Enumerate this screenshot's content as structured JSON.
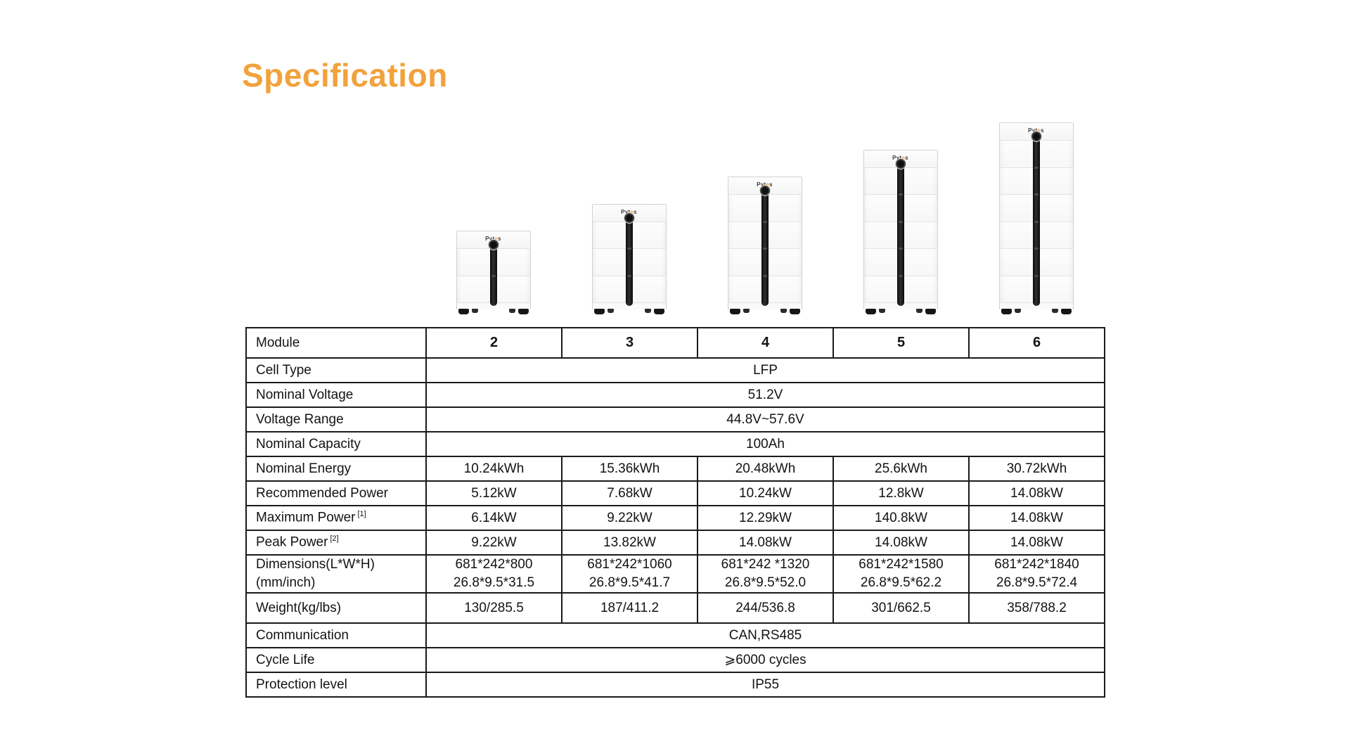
{
  "page": {
    "title": "Specification"
  },
  "colors": {
    "accent": "#F1A23C",
    "table_border": "#1A1A1A",
    "text": "#131313"
  },
  "brand": {
    "name": "Pytes",
    "prefix": "Pyt",
    "accent_letter": "e",
    "suffix": "s"
  },
  "products": [
    {
      "modules": 2
    },
    {
      "modules": 3
    },
    {
      "modules": 4
    },
    {
      "modules": 5
    },
    {
      "modules": 6
    }
  ],
  "table": {
    "rows": [
      {
        "type": "header",
        "label": "Module",
        "values": [
          "2",
          "3",
          "4",
          "5",
          "6"
        ]
      },
      {
        "type": "merged",
        "label": "Cell Type",
        "value": "LFP"
      },
      {
        "type": "merged",
        "label": "Nominal Voltage",
        "value": "51.2V"
      },
      {
        "type": "merged",
        "label": "Voltage Range",
        "value": "44.8V~57.6V"
      },
      {
        "type": "merged",
        "label": "Nominal Capacity",
        "value": "100Ah"
      },
      {
        "type": "data",
        "label": "Nominal Energy",
        "values": [
          "10.24kWh",
          "15.36kWh",
          "20.48kWh",
          "25.6kWh",
          "30.72kWh"
        ]
      },
      {
        "type": "data",
        "label": "Recommended Power",
        "values": [
          "5.12kW",
          "7.68kW",
          "10.24kW",
          "12.8kW",
          "14.08kW"
        ]
      },
      {
        "type": "data",
        "label": "Maximum Power",
        "sup": "[1]",
        "values": [
          "6.14kW",
          "9.22kW",
          "12.29kW",
          "140.8kW",
          "14.08kW"
        ]
      },
      {
        "type": "data",
        "label": "Peak Power",
        "sup": "[2]",
        "values": [
          "9.22kW",
          "13.82kW",
          "14.08kW",
          "14.08kW",
          "14.08kW"
        ]
      },
      {
        "type": "data2",
        "label": "Dimensions(L*W*H)",
        "label2": "(mm/inch)",
        "values": [
          [
            "681*242*800",
            "26.8*9.5*31.5"
          ],
          [
            "681*242*1060",
            "26.8*9.5*41.7"
          ],
          [
            "681*242 *1320",
            "26.8*9.5*52.0"
          ],
          [
            "681*242*1580",
            "26.8*9.5*62.2"
          ],
          [
            "681*242*1840",
            "26.8*9.5*72.4"
          ]
        ]
      },
      {
        "type": "data",
        "label": "Weight(kg/lbs)",
        "values": [
          "130/285.5",
          "187/411.2",
          "244/536.8",
          "301/662.5",
          "358/788.2"
        ]
      },
      {
        "type": "merged",
        "label": "Communication",
        "value": "CAN,RS485"
      },
      {
        "type": "merged",
        "label": "Cycle Life",
        "value": "⩾6000 cycles"
      },
      {
        "type": "merged",
        "label": "Protection level",
        "value": "IP55"
      }
    ]
  }
}
